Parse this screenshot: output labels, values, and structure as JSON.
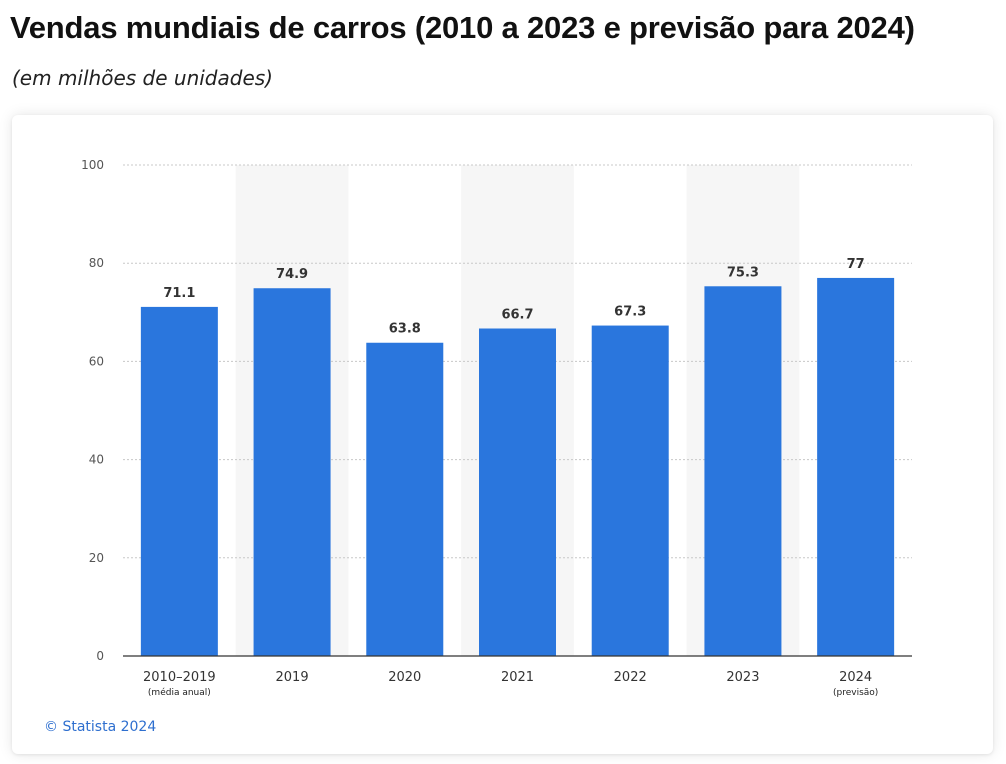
{
  "header": {
    "title": "Vendas mundiais de carros (2010  a 2023 e previsão para 2024)",
    "subtitle": "(em milhões de unidades)"
  },
  "footer": {
    "copyright": "© Statista 2024"
  },
  "colors": {
    "bar": "#2a76dd",
    "band": "#f6f6f6",
    "grid": "#c8c8c8",
    "axis": "#333333",
    "copyright": "#2e6fcf"
  },
  "chart_data": {
    "type": "bar",
    "title": "Vendas mundiais de carros (2010  a 2023 e previsão para 2024)",
    "subtitle": "(em milhões de unidades)",
    "xlabel": "",
    "ylabel": "",
    "categories": [
      "2010–2019",
      "2019",
      "2020",
      "2021",
      "2022",
      "2023",
      "2024"
    ],
    "category_notes": [
      "(média anual)",
      "",
      "",
      "",
      "",
      "",
      "(previsão)"
    ],
    "values": [
      71.1,
      74.9,
      63.8,
      66.7,
      67.3,
      75.3,
      77
    ],
    "value_labels": [
      "71.1",
      "74.9",
      "63.8",
      "66.7",
      "67.3",
      "75.3",
      "77"
    ],
    "ylim": [
      0,
      100
    ],
    "yticks": [
      0,
      20,
      40,
      60,
      80,
      100
    ],
    "grid": true,
    "legend": "none"
  }
}
